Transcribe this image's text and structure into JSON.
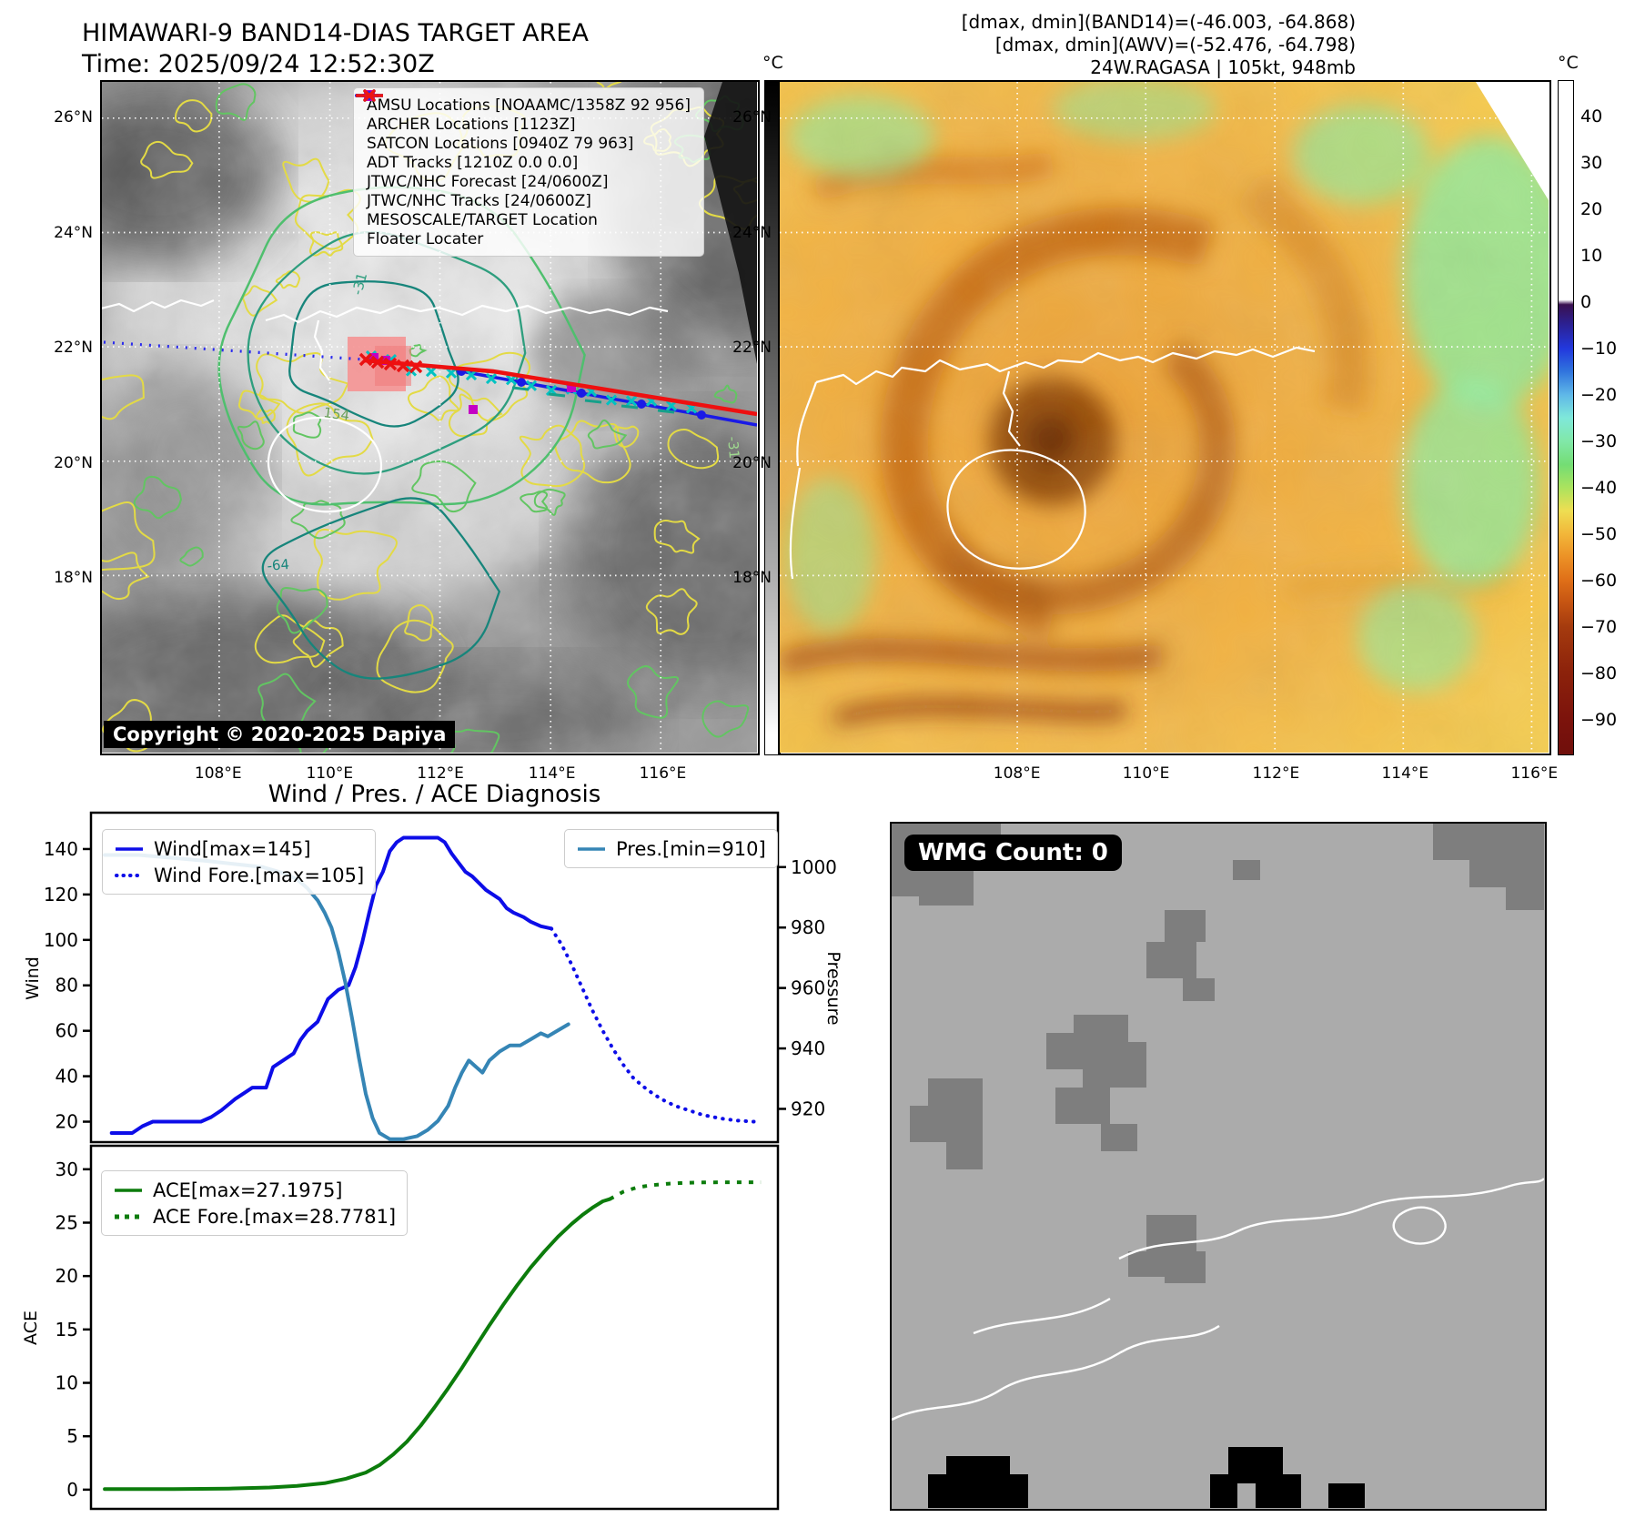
{
  "header": {
    "title_line1": "HIMAWARI-9 BAND14-DIAS TARGET AREA",
    "title_line2": "Time: 2025/09/24 12:52:30Z",
    "stats_line1": "[dmax, dmin](BAND14)=(-46.003, -64.868)",
    "stats_line2": "[dmax, dmin](AWV)=(-52.476, -64.798)",
    "stats_line3": "24W.RAGASA | 105kt, 948mb"
  },
  "band14_panel": {
    "lat_labels": [
      "26°N",
      "24°N",
      "22°N",
      "20°N",
      "18°N"
    ],
    "lon_labels": [
      "108°E",
      "110°E",
      "112°E",
      "114°E",
      "116°E"
    ],
    "contour_labels": [
      "-31",
      "154",
      "-64",
      "-31"
    ],
    "copyright": "Copyright © 2020-2025 Dapiya",
    "legend": [
      {
        "label": "AMSU Locations [NOAAMC/1358Z 92 956]",
        "marker": "square",
        "color": "#c400c4"
      },
      {
        "label": "ARCHER Locations [1123Z]",
        "marker": "square",
        "color": "#c400c4"
      },
      {
        "label": "SATCON Locations [0940Z 79 963]",
        "marker": "x",
        "color": "#00c2c2"
      },
      {
        "label": "ADT Tracks [1210Z 0.0 0.0]",
        "marker": "line",
        "color": "#0a7a0a"
      },
      {
        "label": "JTWC/NHC Forecast [24/0600Z]",
        "marker": "dotted",
        "color": "#2424ee"
      },
      {
        "label": "JTWC/NHC Tracks [24/0600Z]",
        "marker": "line-dot",
        "color": "#2424ee"
      },
      {
        "label": "MESOSCALE/TARGET Location",
        "marker": "x",
        "color": "#ee1515"
      },
      {
        "label": "Floater Locater",
        "marker": "line",
        "color": "#ee1515"
      }
    ],
    "colorbar": {
      "unit": "°C",
      "ticks": [
        "40",
        "30",
        "20",
        "10",
        "0",
        "−10",
        "−20",
        "−30",
        "−40",
        "−50",
        "−60",
        "−70",
        "−80"
      ]
    }
  },
  "awv_panel": {
    "lat_labels": [
      "26°N",
      "24°N",
      "22°N",
      "20°N",
      "18°N"
    ],
    "lon_labels": [
      "108°E",
      "110°E",
      "112°E",
      "114°E",
      "116°E"
    ],
    "colorbar": {
      "unit": "°C",
      "ticks": [
        "40",
        "30",
        "20",
        "10",
        "0",
        "−10",
        "−20",
        "−30",
        "−40",
        "−50",
        "−60",
        "−70",
        "−80",
        "−90"
      ]
    }
  },
  "chart_data": [
    {
      "type": "line",
      "title": "Wind / Pres. / ACE Diagnosis",
      "ylabel_left": "Wind",
      "ylabel_right": "Pressure",
      "ylim_left": [
        11,
        156
      ],
      "ylim_right": [
        909,
        1018
      ],
      "yticks_left": [
        20,
        40,
        60,
        80,
        100,
        120,
        140
      ],
      "yticks_right": [
        920,
        940,
        960,
        980,
        1000
      ],
      "grid": false,
      "legend_position": "upper left / upper right",
      "series": [
        {
          "name": "Wind[max=145]",
          "style": "solid",
          "color": "#0d0de8",
          "axis": "left",
          "points": [
            [
              3,
              15
            ],
            [
              6,
              15
            ],
            [
              7.5,
              18
            ],
            [
              9,
              20
            ],
            [
              13,
              20
            ],
            [
              16,
              20
            ],
            [
              17.5,
              22
            ],
            [
              19,
              25
            ],
            [
              21,
              30
            ],
            [
              22.5,
              33
            ],
            [
              23.5,
              35
            ],
            [
              25.5,
              35
            ],
            [
              26.5,
              44
            ],
            [
              28,
              47
            ],
            [
              29.5,
              50
            ],
            [
              30.5,
              56
            ],
            [
              31.5,
              60
            ],
            [
              33,
              64
            ],
            [
              34.5,
              74
            ],
            [
              36,
              78
            ],
            [
              37.5,
              80
            ],
            [
              38.5,
              88
            ],
            [
              39.5,
              99
            ],
            [
              40.5,
              112
            ],
            [
              41.5,
              124
            ],
            [
              42.5,
              130
            ],
            [
              43.5,
              139
            ],
            [
              44.5,
              143
            ],
            [
              45.5,
              145
            ],
            [
              48,
              145
            ],
            [
              50.5,
              145
            ],
            [
              51.5,
              143
            ],
            [
              52.5,
              138
            ],
            [
              53.5,
              134
            ],
            [
              54.5,
              130
            ],
            [
              55.5,
              128
            ],
            [
              56.5,
              125
            ],
            [
              57.5,
              122
            ],
            [
              58.5,
              120
            ],
            [
              59.5,
              118
            ],
            [
              60.5,
              114
            ],
            [
              61.5,
              112
            ],
            [
              63,
              110
            ],
            [
              64,
              108
            ],
            [
              65.5,
              106
            ],
            [
              67,
              105
            ]
          ]
        },
        {
          "name": "Wind Fore.[max=105]",
          "style": "dotted",
          "color": "#0d0de8",
          "axis": "left",
          "points": [
            [
              67,
              105
            ],
            [
              68.5,
              98
            ],
            [
              70,
              89
            ],
            [
              71.5,
              79
            ],
            [
              73,
              69
            ],
            [
              74.5,
              60
            ],
            [
              76,
              52
            ],
            [
              77.5,
              45
            ],
            [
              79,
              39
            ],
            [
              81,
              34
            ],
            [
              83,
              30
            ],
            [
              85,
              27
            ],
            [
              87,
              25
            ],
            [
              89,
              23
            ],
            [
              91.5,
              21.5
            ],
            [
              94,
              20.5
            ],
            [
              96.5,
              20
            ]
          ]
        },
        {
          "name": "Pres.[min=910]",
          "style": "solid",
          "color": "#3585b5",
          "axis": "right",
          "points": [
            [
              2,
              1004
            ],
            [
              7,
              1004
            ],
            [
              12,
              1003
            ],
            [
              17,
              1002
            ],
            [
              21,
              1001
            ],
            [
              25,
              1000
            ],
            [
              28,
              998
            ],
            [
              30,
              996
            ],
            [
              31.5,
              993
            ],
            [
              33,
              989
            ],
            [
              34,
              985
            ],
            [
              35,
              980
            ],
            [
              36,
              972
            ],
            [
              37,
              962
            ],
            [
              38,
              950
            ],
            [
              39,
              937
            ],
            [
              40,
              925
            ],
            [
              41,
              917
            ],
            [
              42,
              912
            ],
            [
              43.5,
              910
            ],
            [
              45.5,
              910
            ],
            [
              47.5,
              911
            ],
            [
              49,
              913
            ],
            [
              50.5,
              916
            ],
            [
              52,
              921
            ],
            [
              53,
              927
            ],
            [
              54,
              932
            ],
            [
              55,
              936
            ],
            [
              56,
              934
            ],
            [
              57,
              932
            ],
            [
              58,
              936
            ],
            [
              59.5,
              939
            ],
            [
              61,
              941
            ],
            [
              62.5,
              941
            ],
            [
              64,
              943
            ],
            [
              65.5,
              945
            ],
            [
              66.5,
              944
            ],
            [
              68,
              946
            ],
            [
              69.5,
              948
            ]
          ]
        }
      ]
    },
    {
      "type": "line",
      "ylabel_left": "ACE",
      "ylim_left": [
        -1.8,
        32.2
      ],
      "yticks_left": [
        0,
        5,
        10,
        15,
        20,
        25,
        30
      ],
      "grid": false,
      "legend_position": "upper left",
      "series": [
        {
          "name": "ACE[max=27.1975]",
          "style": "solid",
          "color": "#0c7c0c",
          "axis": "left",
          "points": [
            [
              2,
              0.05
            ],
            [
              12,
              0.05
            ],
            [
              20,
              0.1
            ],
            [
              26,
              0.2
            ],
            [
              30,
              0.35
            ],
            [
              34,
              0.6
            ],
            [
              37,
              1.0
            ],
            [
              40,
              1.6
            ],
            [
              42,
              2.3
            ],
            [
              44,
              3.3
            ],
            [
              46,
              4.5
            ],
            [
              48,
              6.0
            ],
            [
              50,
              7.7
            ],
            [
              52,
              9.5
            ],
            [
              54,
              11.4
            ],
            [
              56,
              13.4
            ],
            [
              58,
              15.4
            ],
            [
              60,
              17.3
            ],
            [
              62,
              19.1
            ],
            [
              64,
              20.8
            ],
            [
              66,
              22.3
            ],
            [
              68,
              23.7
            ],
            [
              70,
              24.9
            ],
            [
              71.5,
              25.7
            ],
            [
              73,
              26.4
            ],
            [
              74.5,
              27.0
            ],
            [
              75.5,
              27.2
            ]
          ]
        },
        {
          "name": "ACE Fore.[max=28.7781]",
          "style": "dashed",
          "color": "#0c7c0c",
          "axis": "left",
          "points": [
            [
              75.5,
              27.2
            ],
            [
              77.5,
              27.9
            ],
            [
              79.5,
              28.3
            ],
            [
              81.5,
              28.5
            ],
            [
              84,
              28.65
            ],
            [
              86.5,
              28.73
            ],
            [
              89,
              28.77
            ],
            [
              92,
              28.78
            ],
            [
              95,
              28.78
            ],
            [
              97.5,
              28.78
            ]
          ]
        }
      ]
    }
  ],
  "wmg_panel": {
    "count_label": "WMG Count: 0"
  }
}
